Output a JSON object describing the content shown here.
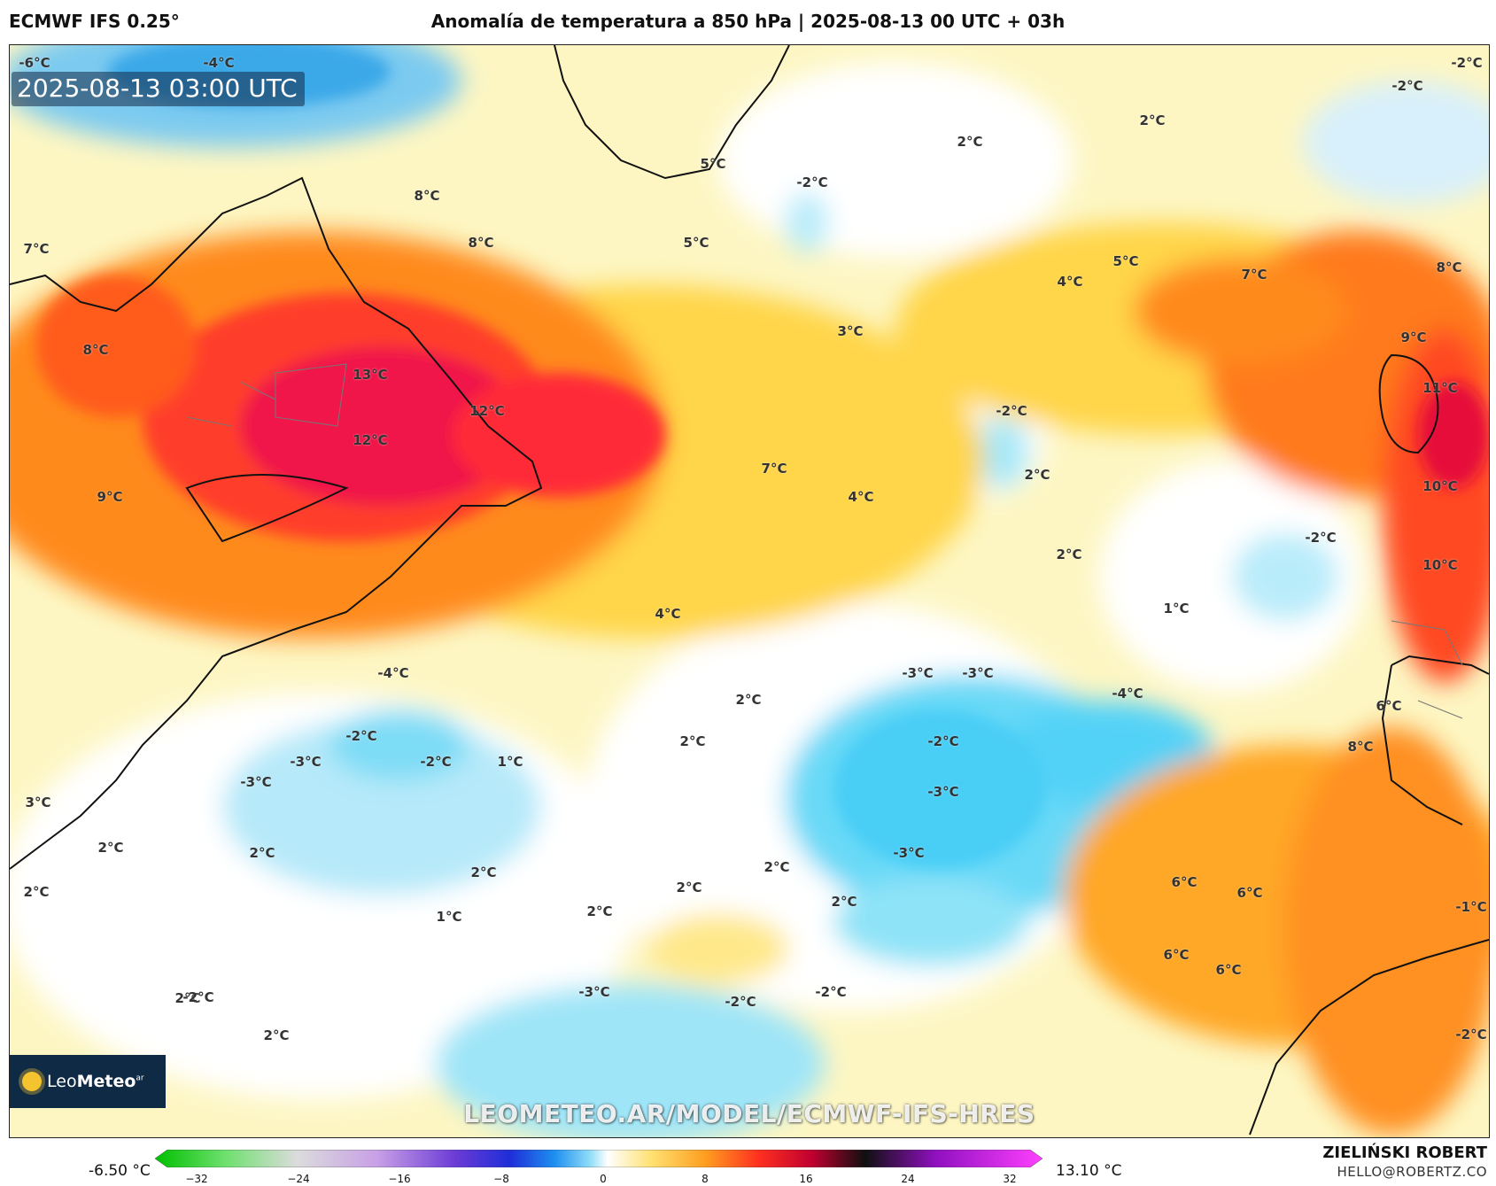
{
  "header": {
    "model": "ECMWF IFS 0.25°",
    "title": "Anomalía de temperatura a 850 hPa | 2025-08-13 00 UTC + 03h"
  },
  "map": {
    "timestamp": "2025-08-13 03:00 UTC",
    "watermark": "LEOMETEO.AR/MODEL/ECMWF-IFS-HRES",
    "logo": {
      "brand": "Leo",
      "brand_bold": "Meteo",
      "suffix": "ar"
    },
    "contour_labels": [
      "-6°C",
      "-4°C",
      "-2°C",
      "-2°C",
      "2°C",
      "2°C",
      "-2°C",
      "5°C",
      "8°C",
      "8°C",
      "5°C",
      "7°C",
      "8°C",
      "3°C",
      "5°C",
      "4°C",
      "7°C",
      "8°C",
      "9°C",
      "13°C",
      "12°C",
      "12°C",
      "-2°C",
      "11°C",
      "9°C",
      "7°C",
      "4°C",
      "2°C",
      "10°C",
      "-2°C",
      "2°C",
      "10°C",
      "4°C",
      "1°C",
      "-4°C",
      "2°C",
      "-3°C",
      "-3°C",
      "-4°C",
      "6°C",
      "-2°C",
      "2°C",
      "1°C",
      "-3°C",
      "-2°C",
      "-3°C",
      "8°C",
      "3°C",
      "-2°C",
      "-3°C",
      "2°C",
      "2°C",
      "2°C",
      "2°C",
      "2°C",
      "-3°C",
      "2°C",
      "2°C",
      "6°C",
      "6°C",
      "2°C",
      "1°C",
      "2°C",
      "-1°C",
      "6°C",
      "6°C",
      "-3°C",
      "-2°C",
      "-2°C",
      "-2°C",
      "2°C",
      "-2°C"
    ]
  },
  "colorbar": {
    "min_label": "-6.50 °C",
    "max_label": "13.10 °C",
    "ticks": [
      "−32",
      "−24",
      "−16",
      "−8",
      "0",
      "8",
      "16",
      "24",
      "32"
    ]
  },
  "footer": {
    "author": "ZIELIŃSKI ROBERT",
    "email": "HELLO@ROBERTZ.CO"
  }
}
